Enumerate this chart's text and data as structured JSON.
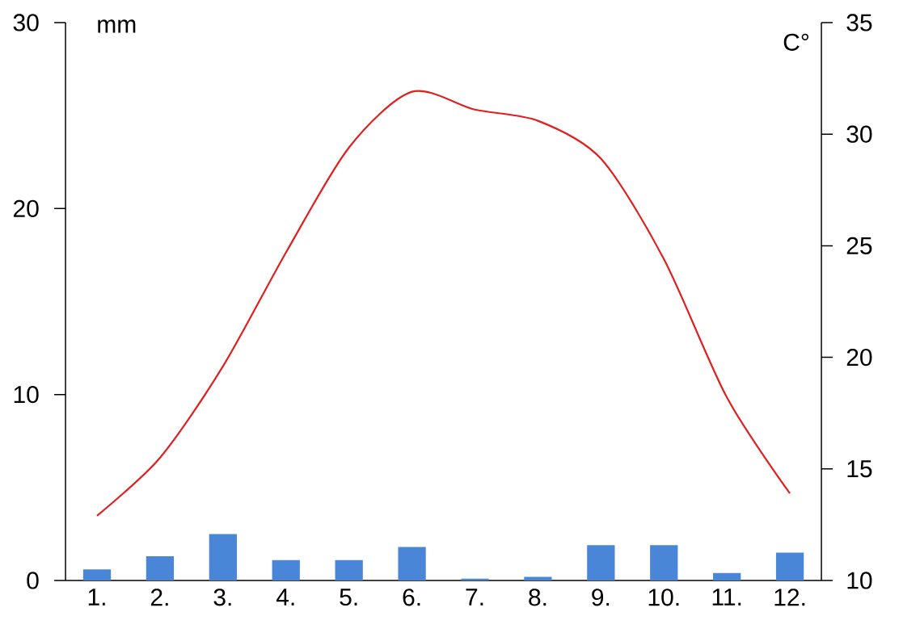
{
  "chart_data": {
    "type": "bar",
    "categories": [
      "1.",
      "2.",
      "3.",
      "4.",
      "5.",
      "6.",
      "7.",
      "8.",
      "9.",
      "10.",
      "11.",
      "12."
    ],
    "ylabel": "mm",
    "y2label": "C°",
    "ylim": [
      0,
      30
    ],
    "yticks": [
      0,
      10,
      20,
      30
    ],
    "y2lim": [
      10,
      35
    ],
    "y2ticks": [
      10,
      15,
      20,
      25,
      30,
      35
    ],
    "series": [
      {
        "axis": "y",
        "color": "#4a86d8",
        "values": [
          0.6,
          1.3,
          2.5,
          1.1,
          1.1,
          1.8,
          0.1,
          0.2,
          1.9,
          1.9,
          0.4,
          1.5
        ]
      },
      {
        "type": "line",
        "axis": "y2",
        "color": "#e02020",
        "values": [
          12.9,
          15.5,
          19.6,
          24.7,
          29.4,
          31.9,
          31.1,
          30.6,
          28.9,
          24.4,
          18.2,
          13.9
        ]
      }
    ]
  }
}
